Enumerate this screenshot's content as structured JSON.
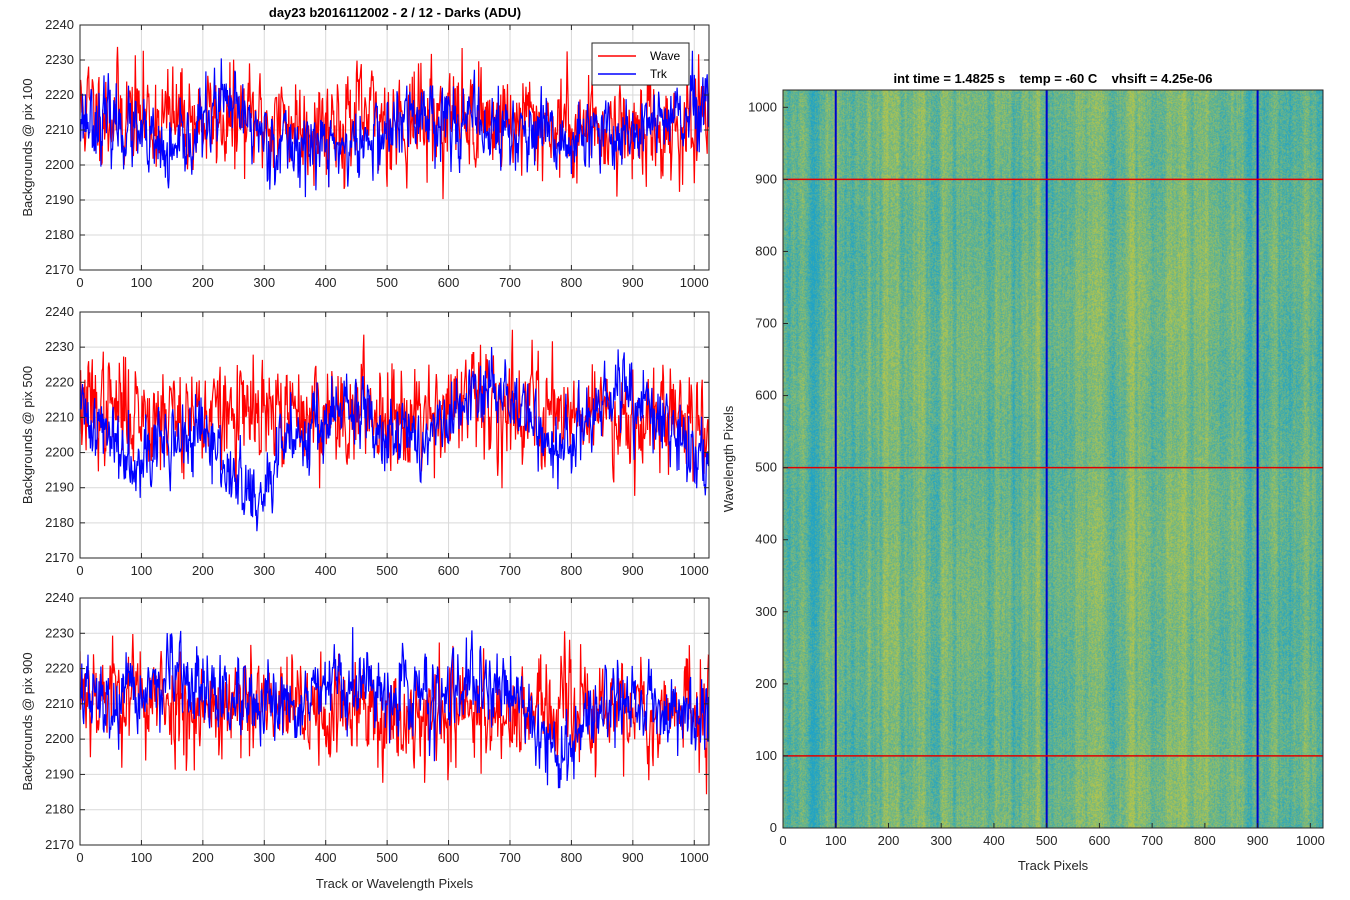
{
  "figure": {
    "title_left": "day23 b2016112002 - 2 / 12 - Darks (ADU)",
    "title_right": "int time = 1.4825 s    temp = -60 C    vhsift = 4.25e-06",
    "shared_xlabel": "Track or Wavelength Pixels"
  },
  "colors": {
    "wave": "#ff0000",
    "trk": "#0000ff",
    "grid": "#d9d9d9",
    "axis": "#262626",
    "heat_low": "#1fa3c7",
    "heat_high": "#b6c64a"
  },
  "chart_data": [
    {
      "type": "line",
      "title": "day23 b2016112002 - 2 / 12 - Darks (ADU)",
      "xlabel": "",
      "ylabel": "Backgrounds @ pix 100",
      "xlim": [
        0,
        1024
      ],
      "ylim": [
        2170,
        2240
      ],
      "xticks": [
        0,
        100,
        200,
        300,
        400,
        500,
        600,
        700,
        800,
        900,
        1000
      ],
      "yticks": [
        2170,
        2180,
        2190,
        2200,
        2210,
        2220,
        2230,
        2240
      ],
      "grid": true,
      "legend": [
        "Wave",
        "Trk"
      ],
      "legend_position": "top-right",
      "series": [
        {
          "name": "Wave",
          "mean": 2212,
          "noise": 7,
          "drift": [
            [
              0,
              2216
            ],
            [
              150,
              2213
            ],
            [
              350,
              2212
            ],
            [
              600,
              2214
            ],
            [
              800,
              2211
            ],
            [
              1024,
              2210
            ]
          ],
          "seed": 11
        },
        {
          "name": "Trk",
          "mean": 2207,
          "noise": 5,
          "drift": [
            [
              0,
              2214
            ],
            [
              60,
              2212
            ],
            [
              150,
              2201
            ],
            [
              230,
              2218
            ],
            [
              320,
              2206
            ],
            [
              450,
              2205
            ],
            [
              560,
              2215
            ],
            [
              680,
              2210
            ],
            [
              800,
              2206
            ],
            [
              940,
              2212
            ],
            [
              1024,
              2215
            ]
          ],
          "seed": 23
        }
      ]
    },
    {
      "type": "line",
      "title": "",
      "xlabel": "",
      "ylabel": "Backgrounds @ pix 500",
      "xlim": [
        0,
        1024
      ],
      "ylim": [
        2170,
        2240
      ],
      "xticks": [
        0,
        100,
        200,
        300,
        400,
        500,
        600,
        700,
        800,
        900,
        1000
      ],
      "yticks": [
        2170,
        2180,
        2190,
        2200,
        2210,
        2220,
        2230,
        2240
      ],
      "grid": true,
      "series": [
        {
          "name": "Wave",
          "mean": 2212,
          "noise": 7,
          "drift": [
            [
              0,
              2213
            ],
            [
              300,
              2210
            ],
            [
              500,
              2212
            ],
            [
              700,
              2214
            ],
            [
              1024,
              2209
            ]
          ],
          "seed": 37
        },
        {
          "name": "Trk",
          "mean": 2205,
          "noise": 5,
          "drift": [
            [
              0,
              2212
            ],
            [
              80,
              2200
            ],
            [
              200,
              2205
            ],
            [
              290,
              2184
            ],
            [
              340,
              2205
            ],
            [
              440,
              2212
            ],
            [
              560,
              2203
            ],
            [
              680,
              2220
            ],
            [
              780,
              2200
            ],
            [
              880,
              2218
            ],
            [
              1024,
              2197
            ]
          ],
          "seed": 41
        }
      ]
    },
    {
      "type": "line",
      "title": "",
      "xlabel": "Track or Wavelength Pixels",
      "ylabel": "Backgrounds @ pix 900",
      "xlim": [
        0,
        1024
      ],
      "ylim": [
        2170,
        2240
      ],
      "xticks": [
        0,
        100,
        200,
        300,
        400,
        500,
        600,
        700,
        800,
        900,
        1000
      ],
      "yticks": [
        2170,
        2180,
        2190,
        2200,
        2210,
        2220,
        2230,
        2240
      ],
      "grid": true,
      "series": [
        {
          "name": "Wave",
          "mean": 2208,
          "noise": 7,
          "drift": [
            [
              0,
              2215
            ],
            [
              200,
              2209
            ],
            [
              500,
              2207
            ],
            [
              800,
              2208
            ],
            [
              1024,
              2208
            ]
          ],
          "seed": 53
        },
        {
          "name": "Trk",
          "mean": 2210,
          "noise": 5,
          "drift": [
            [
              0,
              2214
            ],
            [
              50,
              2208
            ],
            [
              150,
              2218
            ],
            [
              300,
              2206
            ],
            [
              420,
              2215
            ],
            [
              600,
              2212
            ],
            [
              700,
              2216
            ],
            [
              780,
              2194
            ],
            [
              860,
              2212
            ],
            [
              1024,
              2206
            ]
          ],
          "seed": 67
        }
      ]
    },
    {
      "type": "heatmap",
      "title": "int time = 1.4825 s    temp = -60 C    vhsift = 4.25e-06",
      "xlabel": "Track Pixels",
      "ylabel": "Wavelength Pixels",
      "xlim": [
        0,
        1024
      ],
      "ylim": [
        0,
        1024
      ],
      "xticks": [
        0,
        100,
        200,
        300,
        400,
        500,
        600,
        700,
        800,
        900,
        1000
      ],
      "yticks": [
        0,
        100,
        200,
        300,
        400,
        500,
        600,
        700,
        800,
        900,
        1000
      ],
      "vertical_markers": [
        100,
        500,
        900
      ],
      "horizontal_markers": [
        100,
        500,
        900
      ],
      "vertical_marker_color": "#0000cc",
      "horizontal_marker_color": "#e00000"
    }
  ]
}
